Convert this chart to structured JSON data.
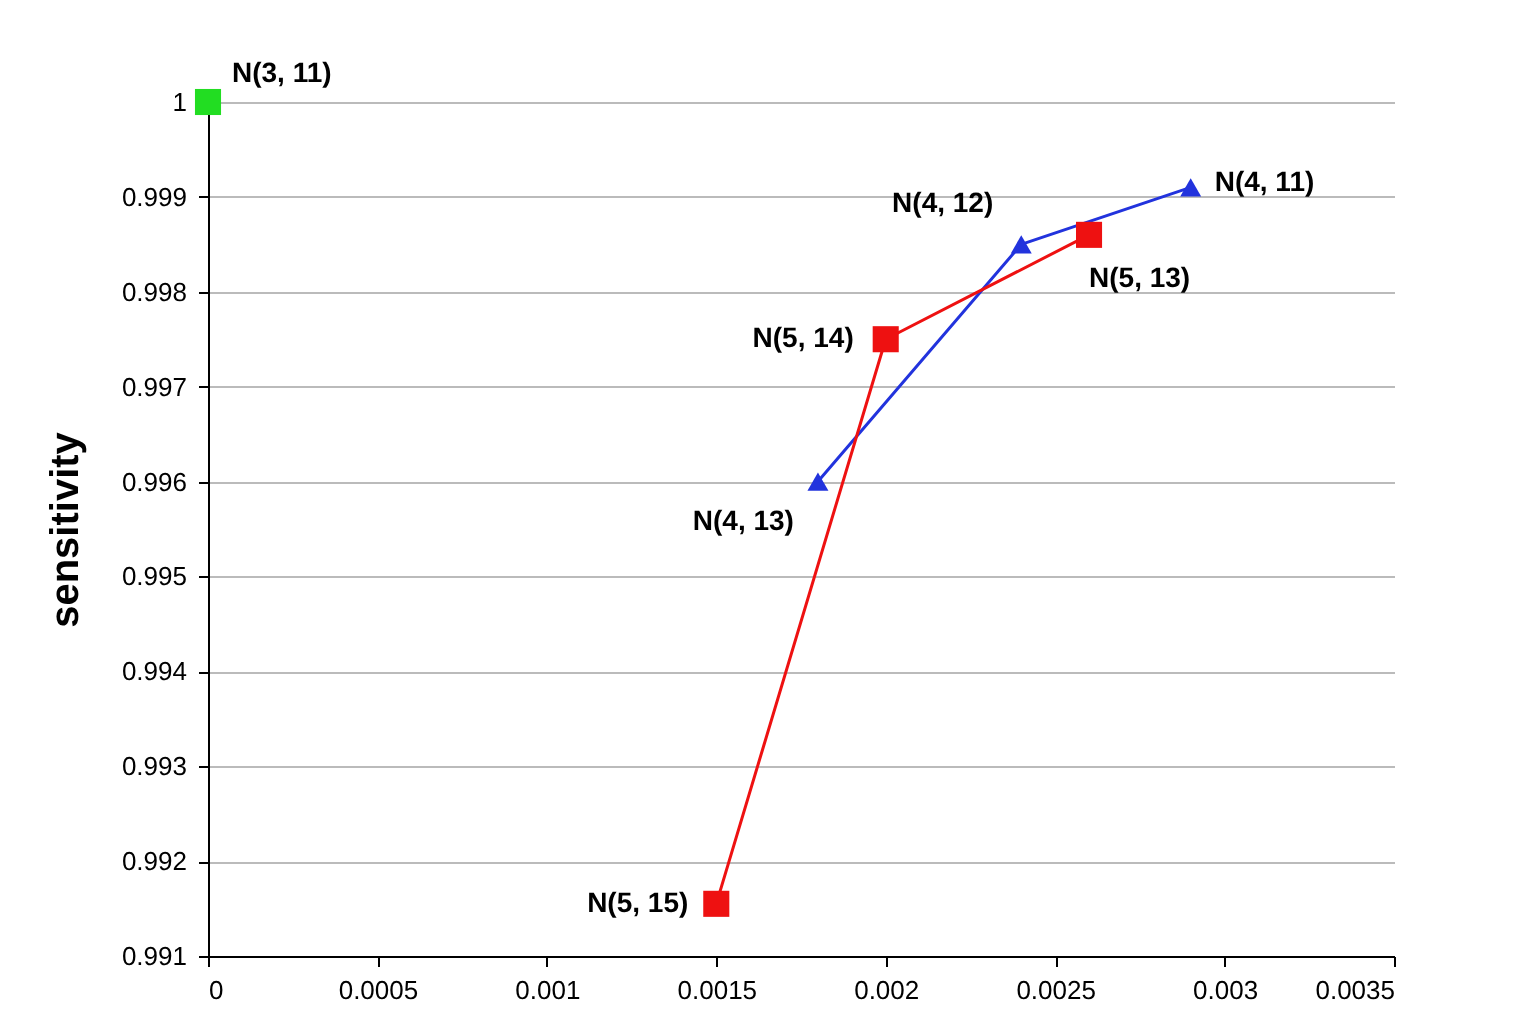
{
  "chart_data": {
    "type": "line",
    "ylabel": "sensitivity",
    "xlim": [
      0,
      0.0035
    ],
    "xticks": [
      0,
      0.0005,
      0.001,
      0.0015,
      0.002,
      0.0025,
      0.003,
      0.0035
    ],
    "ylim": [
      0.991,
      1
    ],
    "yticks": [
      0.991,
      0.992,
      0.993,
      0.994,
      0.995,
      0.996,
      0.997,
      0.998,
      0.999,
      1
    ],
    "grid": "y",
    "series": [
      {
        "type": "scatter",
        "color": "#22dd22",
        "marker": "square",
        "x": [
          0
        ],
        "values": [
          1
        ]
      },
      {
        "type": "line",
        "color": "#2233dd",
        "marker": "triangle",
        "x": [
          0.0018,
          0.0024,
          0.0029
        ],
        "values": [
          0.996,
          0.9985,
          0.9991
        ]
      },
      {
        "type": "line",
        "color": "#ee1111",
        "marker": "square",
        "x": [
          0.0015,
          0.002,
          0.0026
        ],
        "values": [
          0.99155,
          0.9975,
          0.9986
        ]
      }
    ],
    "annotations": [
      {
        "text": "N(3, 11)",
        "x": 0,
        "y": 1
      },
      {
        "text": "N(4, 13)",
        "x": 0.0018,
        "y": 0.996
      },
      {
        "text": "N(4, 12)",
        "x": 0.0024,
        "y": 0.9985
      },
      {
        "text": "N(4, 11)",
        "x": 0.0029,
        "y": 0.9991
      },
      {
        "text": "N(5, 15)",
        "x": 0.0015,
        "y": 0.99155
      },
      {
        "text": "N(5, 14)",
        "x": 0.002,
        "y": 0.9975
      },
      {
        "text": "N(5, 13)",
        "x": 0.0026,
        "y": 0.9986
      }
    ]
  }
}
